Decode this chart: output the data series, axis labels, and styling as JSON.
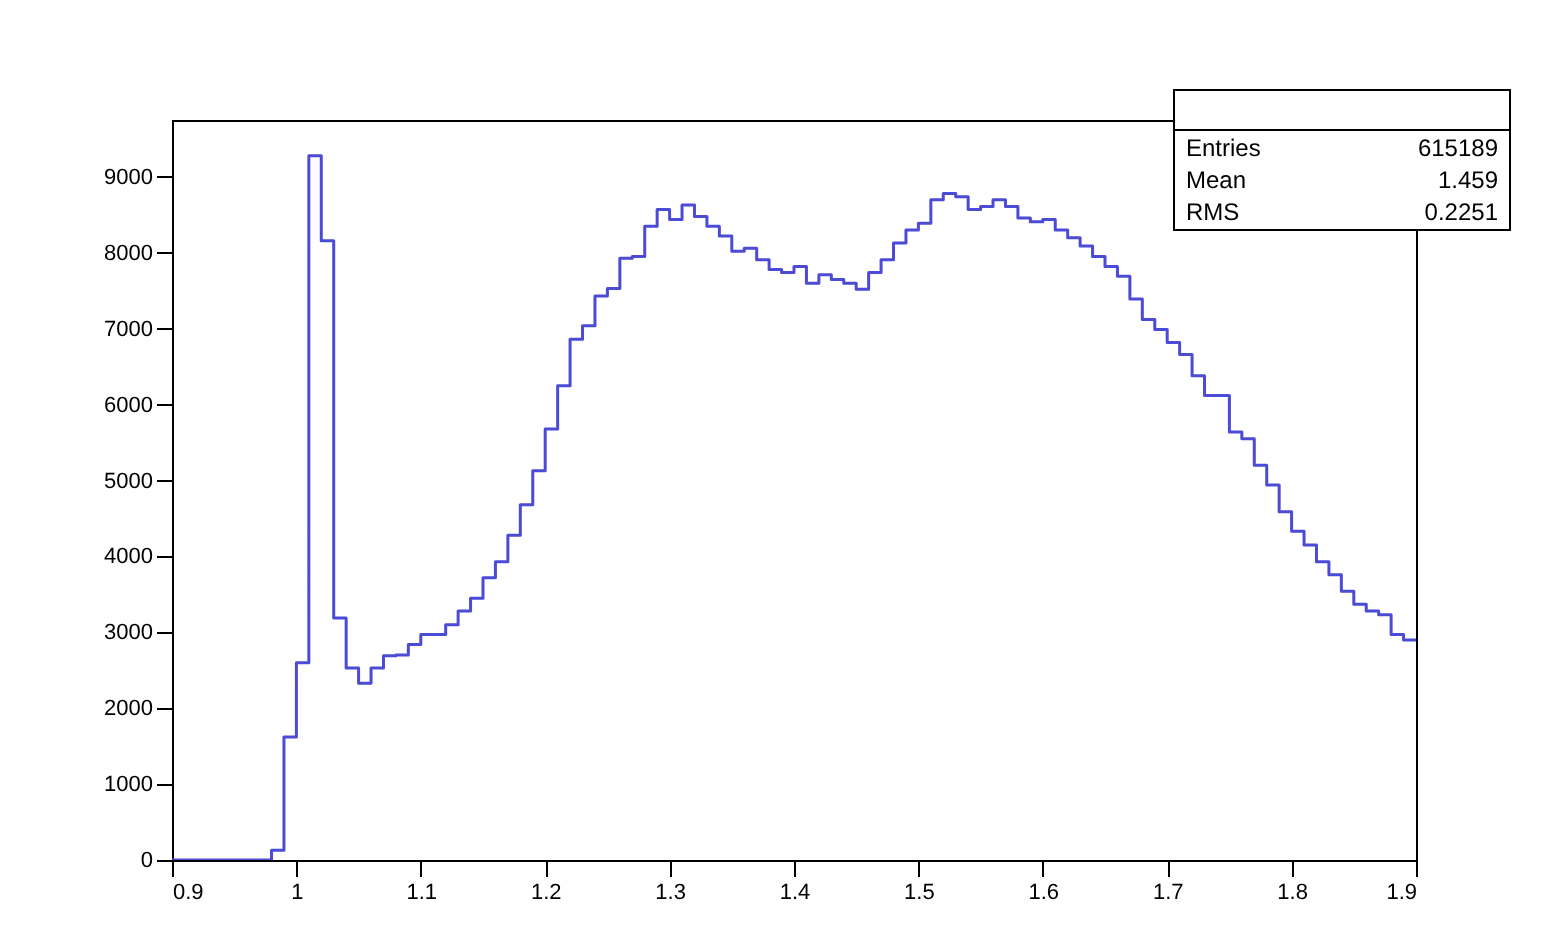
{
  "chart_data": {
    "type": "histogram",
    "bins": [
      0.9,
      0.91,
      0.92,
      0.93,
      0.94,
      0.95,
      0.96,
      0.97,
      0.98,
      0.99,
      1.0,
      1.01,
      1.02,
      1.03,
      1.04,
      1.05,
      1.06,
      1.07,
      1.08,
      1.09,
      1.1,
      1.11,
      1.12,
      1.13,
      1.14,
      1.15,
      1.16,
      1.17,
      1.18,
      1.19,
      1.2,
      1.21,
      1.22,
      1.23,
      1.24,
      1.25,
      1.26,
      1.27,
      1.28,
      1.29,
      1.3,
      1.31,
      1.32,
      1.33,
      1.34,
      1.35,
      1.36,
      1.37,
      1.38,
      1.39,
      1.4,
      1.41,
      1.42,
      1.43,
      1.44,
      1.45,
      1.46,
      1.47,
      1.48,
      1.49,
      1.5,
      1.51,
      1.52,
      1.53,
      1.54,
      1.55,
      1.56,
      1.57,
      1.58,
      1.59,
      1.6,
      1.61,
      1.62,
      1.63,
      1.64,
      1.65,
      1.66,
      1.67,
      1.68,
      1.69,
      1.7,
      1.71,
      1.72,
      1.73,
      1.74,
      1.75,
      1.76,
      1.77,
      1.78,
      1.79,
      1.8,
      1.81,
      1.82,
      1.83,
      1.84,
      1.85,
      1.86,
      1.87,
      1.88,
      1.89,
      1.9
    ],
    "values": [
      0,
      0,
      0,
      0,
      0,
      0,
      0,
      0,
      130,
      1620,
      2600,
      9280,
      8160,
      3190,
      2530,
      2330,
      2530,
      2690,
      2700,
      2840,
      2970,
      2970,
      3100,
      3280,
      3450,
      3720,
      3930,
      4280,
      4680,
      5130,
      5680,
      6250,
      6860,
      7040,
      7430,
      7530,
      7930,
      7950,
      8350,
      8570,
      8440,
      8630,
      8480,
      8350,
      8220,
      8020,
      8060,
      7910,
      7780,
      7740,
      7820,
      7600,
      7710,
      7650,
      7600,
      7520,
      7740,
      7910,
      8130,
      8300,
      8390,
      8700,
      8780,
      8740,
      8570,
      8610,
      8700,
      8610,
      8460,
      8410,
      8440,
      8300,
      8200,
      8090,
      7950,
      7820,
      7690,
      7390,
      7120,
      6990,
      6820,
      6660,
      6380,
      6120,
      6120,
      5640,
      5550,
      5200,
      4940,
      4590,
      4330,
      4150,
      3930,
      3760,
      3540,
      3370,
      3280,
      3230,
      2970,
      2900
    ],
    "color": "#4b4bd6",
    "xlim": [
      0.9,
      1.9
    ],
    "xticks": [
      0.9,
      1,
      1.1,
      1.2,
      1.3,
      1.4,
      1.5,
      1.6,
      1.7,
      1.8,
      1.9
    ],
    "ylim": [
      0,
      9750
    ],
    "yticks": [
      0,
      1000,
      2000,
      3000,
      4000,
      5000,
      6000,
      7000,
      8000,
      9000
    ],
    "grid": false,
    "annotations": [
      "Entries",
      "615189",
      "Mean",
      "1.459",
      "RMS",
      "0.2251"
    ]
  }
}
